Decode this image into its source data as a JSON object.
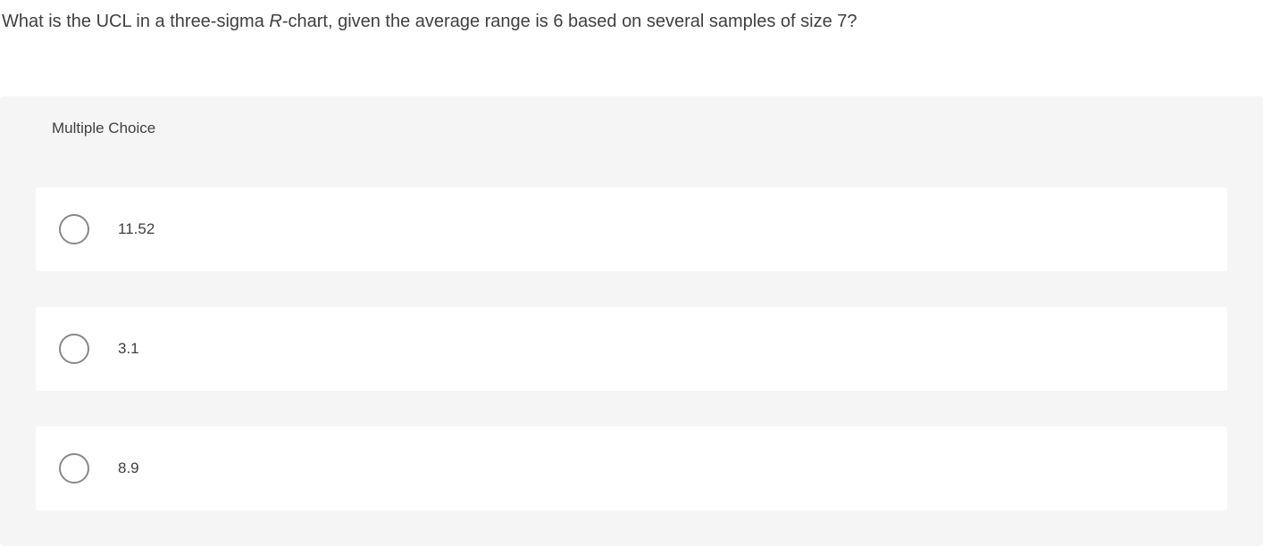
{
  "question": {
    "text_before_italic": "What is the UCL in a three-sigma ",
    "italic_text": "R",
    "text_after_italic": "-chart, given the average range is 6 based on several samples of size 7?"
  },
  "section": {
    "header": "Multiple Choice"
  },
  "options": [
    {
      "label": "11.52"
    },
    {
      "label": "3.1"
    },
    {
      "label": "8.9"
    }
  ],
  "colors": {
    "background": "#ffffff",
    "section_bg": "#f5f5f5",
    "option_bg": "#ffffff",
    "text": "#404040",
    "radio_border": "#888888"
  }
}
